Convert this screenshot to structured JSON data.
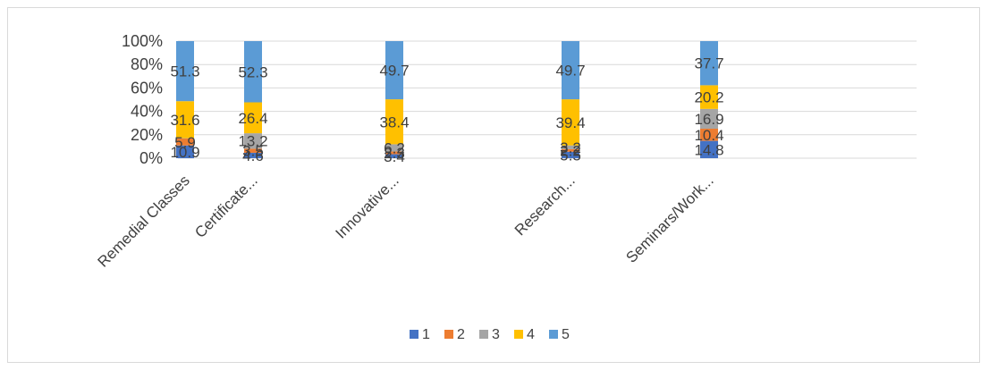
{
  "chart_data": {
    "type": "bar",
    "stacked": true,
    "percent_stacked": true,
    "categories": [
      "Remedial Classes",
      "Certificate...",
      "Innovative...",
      "Research...",
      "Seminars/Work..."
    ],
    "series": [
      {
        "name": "1",
        "color": "#4472c4",
        "values": [
          10.9,
          4.6,
          3.4,
          5.5,
          14.8
        ]
      },
      {
        "name": "2",
        "color": "#ed7d31",
        "values": [
          5.9,
          3.5,
          2.3,
          2.2,
          10.4
        ]
      },
      {
        "name": "3",
        "color": "#a5a5a5",
        "values": [
          0.3,
          13.2,
          6.2,
          3.2,
          16.9
        ]
      },
      {
        "name": "4",
        "color": "#ffc000",
        "values": [
          31.6,
          26.4,
          38.4,
          39.4,
          20.2
        ]
      },
      {
        "name": "5",
        "color": "#5b9bd5",
        "values": [
          51.3,
          52.3,
          49.7,
          49.7,
          37.7
        ]
      }
    ],
    "data_labels": [
      [
        "10.9",
        "4.6",
        "3.4",
        "5.5",
        "14.8"
      ],
      [
        "5.9",
        "3.5",
        "2.3",
        "2.2",
        "10.4"
      ],
      [
        "",
        "13.2",
        "6.2",
        "3.2",
        "16.9"
      ],
      [
        "31.6",
        "26.4",
        "38.4",
        "39.4",
        "20.2"
      ],
      [
        "51.3",
        "52.3",
        "49.7",
        "49.7",
        "37.7"
      ]
    ],
    "y_ticks": [
      "0%",
      "20%",
      "40%",
      "60%",
      "80%",
      "100%"
    ],
    "ylim": [
      0,
      100
    ],
    "grid": true,
    "legend_position": "bottom"
  }
}
